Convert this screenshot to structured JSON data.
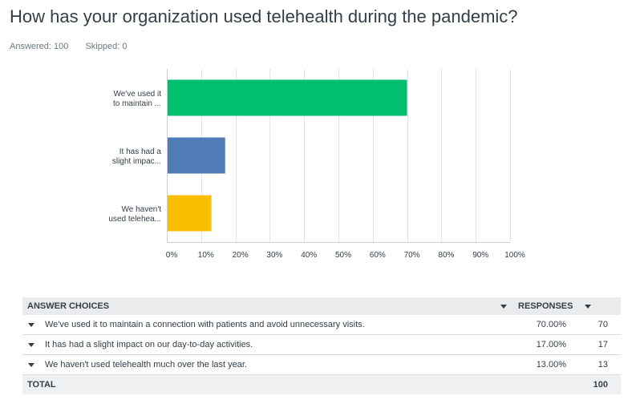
{
  "question": {
    "title": "How has your organization used telehealth during the pandemic?",
    "answered_label": "Answered: 100",
    "skipped_label": "Skipped: 0"
  },
  "chart_data": {
    "type": "bar",
    "orientation": "horizontal",
    "categories": [
      "We've used it to maintain ...",
      "It has had a slight impac...",
      "We haven't used telehea..."
    ],
    "category_lines": [
      [
        "We've used it",
        "to maintain ..."
      ],
      [
        "It has had a",
        "slight impac..."
      ],
      [
        "We haven't",
        "used telehea..."
      ]
    ],
    "values": [
      70,
      17,
      13
    ],
    "colors": [
      "#00bf6f",
      "#507cb6",
      "#f9be00"
    ],
    "xlim": [
      0,
      100
    ],
    "xticks": [
      "0%",
      "10%",
      "20%",
      "30%",
      "40%",
      "50%",
      "60%",
      "70%",
      "80%",
      "90%",
      "100%"
    ],
    "grid": true
  },
  "table": {
    "header_choices": "ANSWER CHOICES",
    "header_responses": "RESPONSES",
    "rows": [
      {
        "choice": "We've used it to maintain a connection with patients and avoid unnecessary visits.",
        "percent": "70.00%",
        "count": "70"
      },
      {
        "choice": "It has had a slight impact on our day-to-day activities.",
        "percent": "17.00%",
        "count": "17"
      },
      {
        "choice": "We haven't used telehealth much over the last year.",
        "percent": "13.00%",
        "count": "13"
      }
    ],
    "total_label": "TOTAL",
    "total_count": "100"
  }
}
